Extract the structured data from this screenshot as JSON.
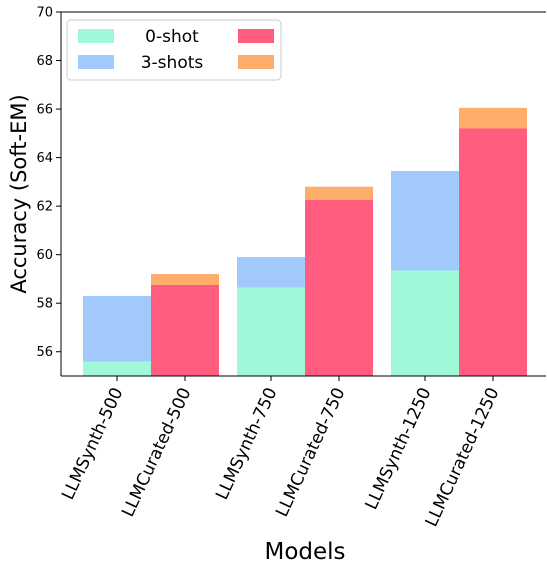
{
  "chart_data": {
    "type": "bar",
    "xlabel": "Models",
    "ylabel": "Accuracy (Soft-EM)",
    "ylim": [
      55,
      70
    ],
    "yticks": [
      56,
      58,
      60,
      62,
      64,
      66,
      68,
      70
    ],
    "grid": false,
    "legend_position": "top-left",
    "categories": [
      "LLMSynth-500",
      "LLMCurated-500",
      "LLMSynth-750",
      "LLMCurated-750",
      "LLMSynth-1250",
      "LLMCurated-1250"
    ],
    "series": [
      {
        "name": "0-shot",
        "values": [
          55.6,
          58.75,
          58.65,
          62.25,
          59.35,
          65.2
        ]
      },
      {
        "name": "3-shots",
        "values": [
          58.3,
          59.2,
          59.9,
          62.8,
          63.45,
          66.05
        ]
      }
    ],
    "legend": {
      "entries": [
        {
          "label": "0-shot",
          "color": "#9ff9d8"
        },
        {
          "label": "",
          "color": "#ff5c7f"
        },
        {
          "label": "3-shots",
          "color": "#a2c9fb"
        },
        {
          "label": "",
          "color": "#ffad6b"
        }
      ]
    },
    "colors": {
      "synth_0shot": "#9ff9d8",
      "synth_3shot": "#a2c9fb",
      "curated_0shot": "#ff5c7f",
      "curated_3shot": "#ffad6b"
    }
  }
}
